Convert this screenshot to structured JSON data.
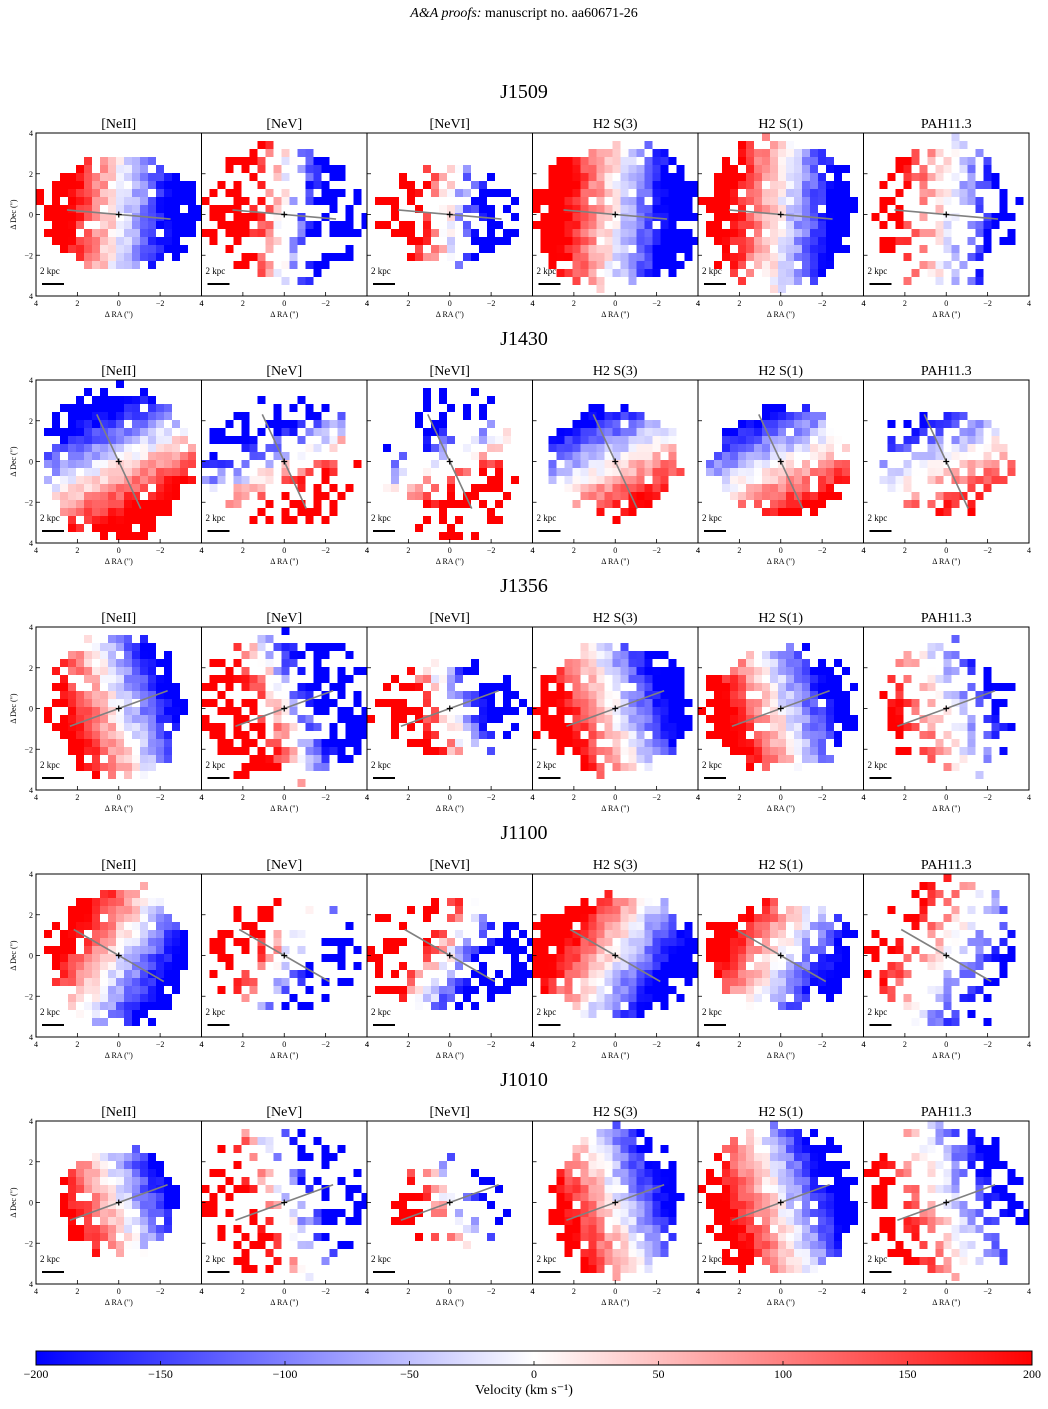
{
  "header": {
    "journal_prefix": "A&A proofs:",
    "manuscript": "manuscript no. aa60671-26"
  },
  "figure": {
    "panel_titles": [
      "[NeII]",
      "[NeV]",
      "[NeVI]",
      "H2 S(3)",
      "H2 S(1)",
      "PAH11.3"
    ],
    "scalebar_label": "2 kpc",
    "x_axis_label": "Δ RA (\")",
    "y_axis_label": "Δ Dec (\")",
    "axis_ticks": [
      "4",
      "2",
      "0",
      "−2",
      "4"
    ],
    "axis_ticks_y": [
      "4",
      "2",
      "0",
      "−2",
      "4"
    ],
    "galaxies": [
      {
        "name": "J1509",
        "pa_deg": 95
      },
      {
        "name": "J1430",
        "pa_deg": 155
      },
      {
        "name": "J1356",
        "pa_deg": 70
      },
      {
        "name": "J1100",
        "pa_deg": 120
      },
      {
        "name": "J1010",
        "pa_deg": 70
      }
    ]
  },
  "colorbar": {
    "min": -200,
    "max": 200,
    "ticks": [
      "−200",
      "−150",
      "−100",
      "−50",
      "0",
      "50",
      "100",
      "150",
      "200"
    ],
    "label": "Velocity (km s⁻¹)",
    "colors": {
      "low": "#0000ff",
      "mid": "#ffffff",
      "high": "#ff0000"
    }
  }
}
